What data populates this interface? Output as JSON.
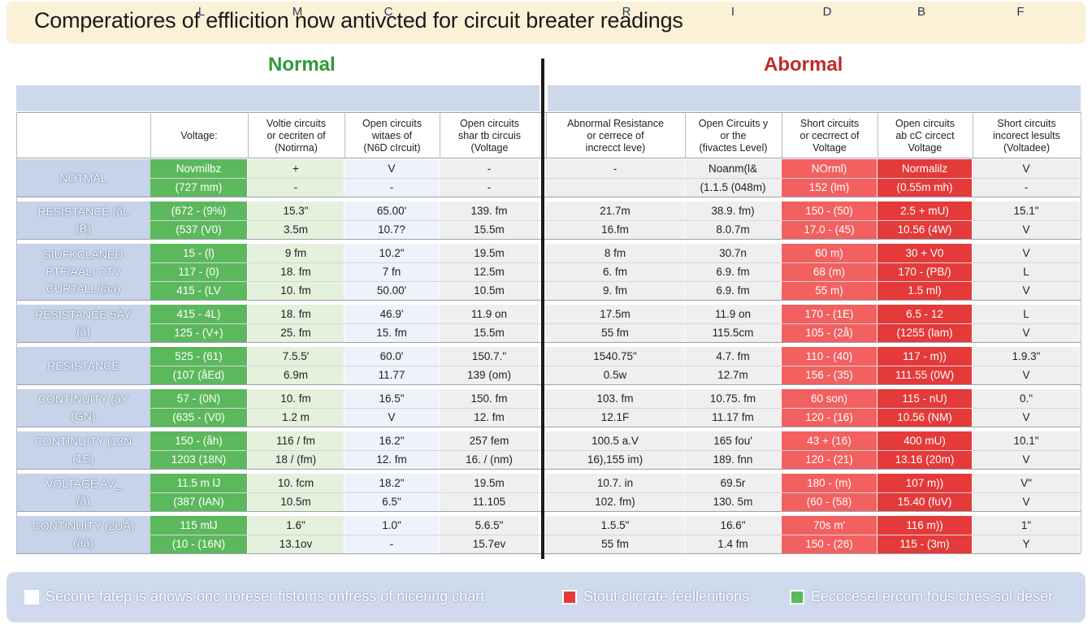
{
  "title": "Comperatiores of efflicition now antivcted for circuit breater readings",
  "sections": {
    "normal": "Normal",
    "abnormal": "Abormal"
  },
  "letters": [
    "L",
    "M",
    "C",
    "R",
    "I",
    "D",
    "B",
    "F"
  ],
  "columns": [
    "Voltage:",
    "Voltie circuits\nor cecriten of\n(Notirrna)",
    "Open circuits\nwitaes of\n(N6D cIrcuit)",
    "Open circuits\nshar tb circuis\n(Voltage",
    "Abnormal Resistance\nor cerrece of\nincrecct leve)",
    "Open Circuits y\nor the\n(fivactes Level)",
    "Short circuits\nor cecrrect of\nVoltage",
    "Open circuits\nab cC circect\nVoltage",
    "Short circuits\nincorect lesults\n(Voltadee)"
  ],
  "groups": [
    {
      "label": "NOTMAL",
      "rows": [
        [
          "Novmilbz",
          "+",
          "V",
          "-",
          "-",
          "Noanm(l&",
          "NOrml)",
          "Normalilz",
          "V"
        ],
        [
          "(727 mm)",
          "-",
          "-",
          "-",
          "",
          "(1.1.5 (048m)",
          "152 (lm)",
          "(0.55m mh)",
          "-"
        ]
      ]
    },
    {
      "label": "RESISTANCE  (åL\n(B)",
      "rows": [
        [
          "(672 - (9%)",
          "15.3\"",
          "65.00'",
          "139. fm",
          "21.7m",
          "38.9. fm)",
          "150 - (50)",
          "2.5 + mU)",
          "15.1\""
        ],
        [
          "(537 (V0)",
          "3.5m",
          "10.7?",
          "15.5m",
          "16.fm",
          "8.0.7m",
          "17.0 - (45)",
          "10.56 (4W)",
          "V"
        ]
      ]
    },
    {
      "label": "SIUFKCLANED\nPTF/AALI CTV\nCURTALL/(àa)",
      "rows": [
        [
          "15 - (l)",
          "9 fm",
          "10.2\"",
          "19.5m",
          "8 fm",
          "30.7n",
          "60 m)",
          "30 + V0",
          "V"
        ],
        [
          "117 - (0)",
          "18. fm",
          "7 fn",
          "12.5m",
          "6. fm",
          "6.9. fm",
          "68 (m)",
          "170 - (PB/)",
          "L"
        ],
        [
          "415 - (LV",
          "10. fm",
          "50.00'",
          "10.5m",
          "9. fm",
          "6.9. fm",
          "55 m)",
          "1.5 ml)",
          "V"
        ]
      ]
    },
    {
      "label": "RESISTANCE  5ÅY\n(å)",
      "rows": [
        [
          "415 - 4L)",
          "18. fm",
          "46.9'",
          "11.9 on",
          "17.5m",
          "11.9 on",
          "170 - (1E)",
          "6.5 - 12",
          "L"
        ],
        [
          "125 - (V+)",
          "25. fm",
          "15. fm",
          "15.5m",
          "55 fm",
          "115.5cm",
          "105 - (2å)",
          "(1255 (lam)",
          "V"
        ]
      ]
    },
    {
      "label": "RESISTANCE",
      "rows": [
        [
          "525 - (61)",
          "7.5.5'",
          "60.0'",
          "150.7.\"",
          "1540.75\"",
          "4.7. fm",
          "110 - (40)",
          "117 - m))",
          "1.9.3\""
        ],
        [
          "(107 (åEd)",
          "6.9m",
          "11.77",
          "139 (om)",
          "0.5w",
          "12.7m",
          "156 - (35)",
          "111.55 (0W)",
          "V"
        ]
      ]
    },
    {
      "label": "CONTINUITY  (åY\n(GN)",
      "rows": [
        [
          "57 - (0N)",
          "10. fm",
          "16.5\"",
          "150. fm",
          "103. fm",
          "10.75. fm",
          "60 son)",
          "115 - nU)",
          "0.\""
        ],
        [
          "(635 - (V0)",
          "1.2 m",
          "V",
          "12. fm",
          "12.1F",
          "11.17 fm",
          "120 - (16)",
          "10.56 (NM)",
          "V"
        ]
      ]
    },
    {
      "label": "CONTINUITY  (13N\n(1E)",
      "rows": [
        [
          "150 - (åh)",
          "116 / fm",
          "16.2\"",
          "257 fem",
          "100.5 a.V",
          "165 fou'",
          "43 + (16)",
          "400 mU)",
          "10.1\""
        ],
        [
          "1203 (18N)",
          "18 / (fm)",
          "12. fm",
          "16. / (nm)",
          "16),155 im)",
          "189. fnn",
          "120 - (21)",
          "13.16 (20m)",
          "V"
        ]
      ]
    },
    {
      "label": "VOLTAGE  AV_\n(å)",
      "rows": [
        [
          "11.5 m lJ",
          "10. fcm",
          "18.2\"",
          "19.5m",
          "10.7. in",
          "69.5r",
          "180 - (m)",
          "107 m))",
          "V\""
        ],
        [
          "(387 (IAN)",
          "10.5m",
          "6.5\"",
          "11.105",
          "102. fm)",
          "130. 5m",
          "(60 - (58)",
          "15.40 (fuV)",
          "V"
        ]
      ]
    },
    {
      "label": "CONTINUITY  (2UÅ)\n(åå)",
      "rows": [
        [
          "115 mlJ",
          "1.6\"",
          "1.0\"",
          "5.6.5\"",
          "1.5.5\"",
          "16.6\"",
          "70s m'",
          "116 m))",
          "1\""
        ],
        [
          "(10 - (16N)",
          "13.1ov",
          "-",
          "15.7ev",
          "55 fm",
          "1.4 fm",
          "150 - (26)",
          "115 - (3m)",
          "Y"
        ]
      ]
    }
  ],
  "legend": {
    "left": "Secone fatep is anows onc noreser fistoms onfress of nicering chart",
    "red": "Stout clicrate feellenitions",
    "green": "Eecocesel ercom fous ches sol deser",
    "red_color": "#e43a3a",
    "green_color": "#5cb85c"
  }
}
